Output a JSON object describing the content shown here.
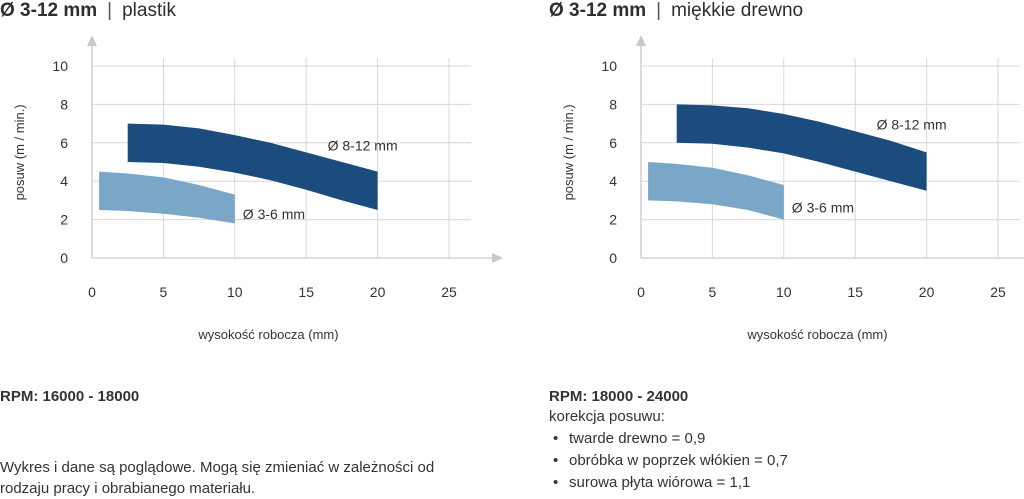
{
  "note": "Wykres i dane są poglądowe. Mogą się zmieniać w zależności od rodzaju pracy i obrabianego materiału.",
  "chart_data": [
    {
      "type": "area",
      "title_diameter": "Ø 3-12 mm",
      "title_separator": "|",
      "title_material": "plastik",
      "xlabel": "wysokość robocza (mm)",
      "ylabel": "posuw (m / min.)",
      "xlim": [
        0,
        25
      ],
      "ylim": [
        0,
        10
      ],
      "xticks": [
        0,
        5,
        10,
        15,
        20,
        25
      ],
      "yticks": [
        0,
        2,
        4,
        6,
        8,
        10
      ],
      "grid": true,
      "series": [
        {
          "name": "Ø 8-12 mm",
          "color": "#1c4b7d",
          "x": [
            2.5,
            5,
            7.5,
            10,
            12.5,
            15,
            17.5,
            20
          ],
          "upper": [
            7.0,
            6.95,
            6.75,
            6.4,
            6.0,
            5.5,
            5.0,
            4.5
          ],
          "lower": [
            5.0,
            4.95,
            4.75,
            4.45,
            4.05,
            3.55,
            3.0,
            2.5
          ]
        },
        {
          "name": "Ø 3-6 mm",
          "color": "#7aa7c7",
          "x": [
            0.5,
            2.5,
            5,
            7.5,
            10
          ],
          "upper": [
            4.5,
            4.4,
            4.2,
            3.8,
            3.3
          ],
          "lower": [
            2.5,
            2.45,
            2.3,
            2.1,
            1.8
          ]
        }
      ],
      "rpm": "RPM: 16000 - 18000"
    },
    {
      "type": "area",
      "title_diameter": "Ø 3-12 mm",
      "title_separator": "|",
      "title_material": "miękkie drewno",
      "xlabel": "wysokość robocza (mm)",
      "ylabel": "posuw (m / min.)",
      "xlim": [
        0,
        25
      ],
      "ylim": [
        0,
        10
      ],
      "xticks": [
        0,
        5,
        10,
        15,
        20,
        25
      ],
      "yticks": [
        0,
        2,
        4,
        6,
        8,
        10
      ],
      "grid": true,
      "series": [
        {
          "name": "Ø 8-12 mm",
          "color": "#1c4b7d",
          "x": [
            2.5,
            5,
            7.5,
            10,
            12.5,
            15,
            17.5,
            20
          ],
          "upper": [
            8.0,
            7.95,
            7.8,
            7.5,
            7.1,
            6.6,
            6.1,
            5.5
          ],
          "lower": [
            6.0,
            5.95,
            5.75,
            5.45,
            5.0,
            4.5,
            4.0,
            3.5
          ]
        },
        {
          "name": "Ø 3-6 mm",
          "color": "#7aa7c7",
          "x": [
            0.5,
            2.5,
            5,
            7.5,
            10
          ],
          "upper": [
            5.0,
            4.9,
            4.7,
            4.3,
            3.8
          ],
          "lower": [
            3.0,
            2.95,
            2.8,
            2.5,
            2.0
          ]
        }
      ],
      "rpm": "RPM: 18000 - 24000",
      "correction_title": "korekcja posuwu:",
      "corrections": [
        "twarde drewno = 0,9",
        "obróbka w poprzek włókien = 0,7",
        "surowa płyta wiórowa = 1,1"
      ]
    }
  ]
}
